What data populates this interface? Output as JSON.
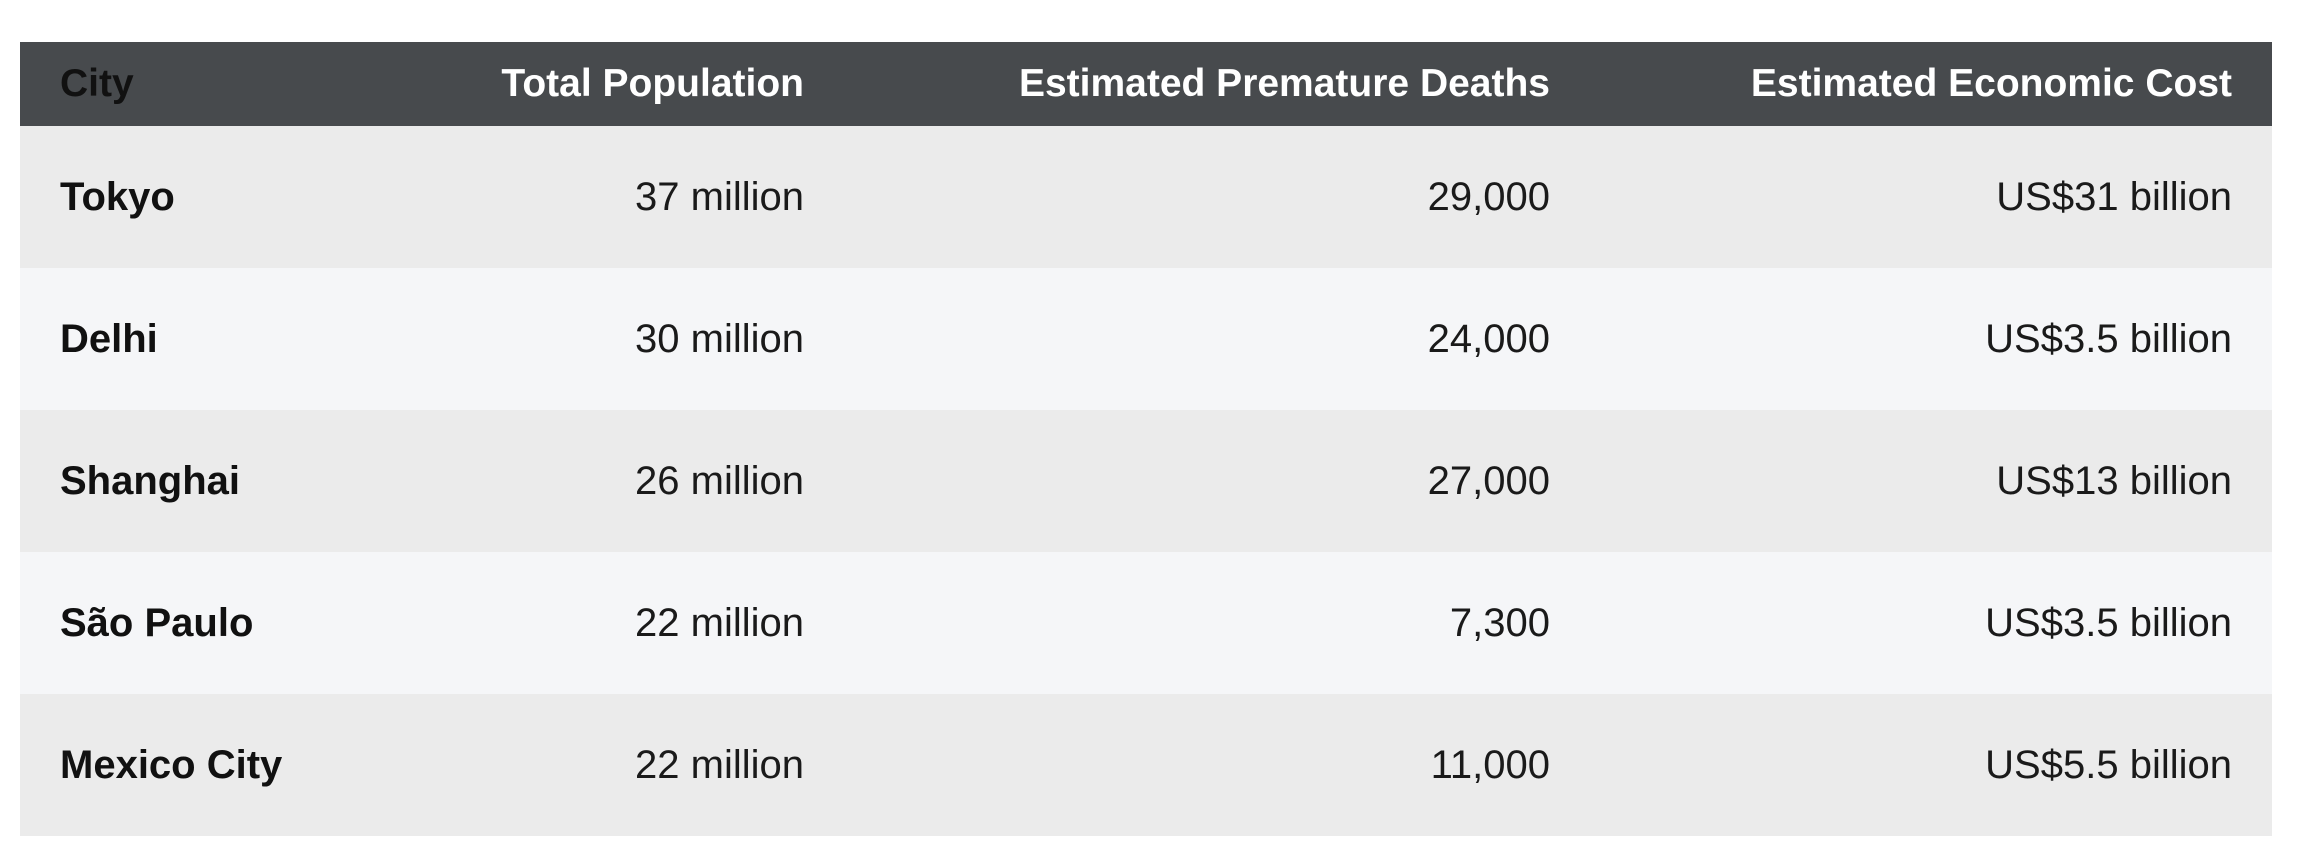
{
  "table": {
    "headers": {
      "city": "City",
      "population": "Total Population",
      "deaths": "Estimated Premature Deaths",
      "cost": "Estimated Economic Cost"
    },
    "rows": [
      {
        "city": "Tokyo",
        "population": "37 million",
        "deaths": "29,000",
        "cost": "US$31 billion"
      },
      {
        "city": "Delhi",
        "population": "30 million",
        "deaths": "24,000",
        "cost": "US$3.5 billion"
      },
      {
        "city": "Shanghai",
        "population": "26 million",
        "deaths": "27,000",
        "cost": "US$13 billion"
      },
      {
        "city": "São Paulo",
        "population": "22 million",
        "deaths": "7,300",
        "cost": "US$3.5 billion"
      },
      {
        "city": "Mexico City",
        "population": "22 million",
        "deaths": "11,000",
        "cost": "US$5.5 billion"
      }
    ]
  },
  "colors": {
    "header_bg": "#474a4d",
    "row_odd_bg": "#ebebeb",
    "row_even_bg": "#f5f6f8"
  }
}
